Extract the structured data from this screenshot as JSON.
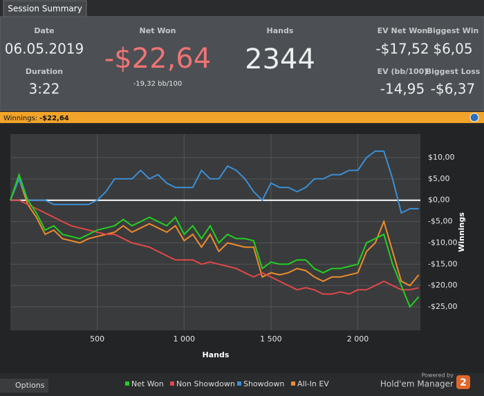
{
  "tab": "Session Summary",
  "stats": {
    "date_label": "Date",
    "date": "06.05.2019",
    "duration_label": "Duration",
    "duration": "3:22",
    "net_won_label": "Net Won",
    "net_won": "-$22,64",
    "net_won_bb": "-19,32 bb/100",
    "hands_label": "Hands",
    "hands": "2344",
    "ev_net_won_label": "EV Net Won",
    "ev_net_won": "-$17,52",
    "biggest_win_label": "Biggest Win",
    "biggest_win": "$6,05",
    "ev_bb_label": "EV (bb/100)",
    "ev_bb": "-14,95",
    "biggest_loss_label": "Biggest Loss",
    "biggest_loss": "-$6,37"
  },
  "winnings_bar": {
    "label": "Winnings:",
    "value": "-$22,64"
  },
  "chart_data": {
    "type": "line",
    "x_label": "Hands",
    "y_label": "Winnings",
    "x": [
      0,
      50,
      100,
      150,
      200,
      250,
      300,
      350,
      400,
      450,
      500,
      550,
      600,
      650,
      700,
      750,
      800,
      850,
      900,
      950,
      1000,
      1050,
      1100,
      1150,
      1200,
      1250,
      1300,
      1350,
      1400,
      1450,
      1500,
      1550,
      1600,
      1650,
      1700,
      1750,
      1800,
      1850,
      1900,
      1950,
      2000,
      2050,
      2100,
      2150,
      2200,
      2250,
      2300,
      2350
    ],
    "xlim": [
      0,
      2360
    ],
    "ylim": [
      -30.5,
      15.5
    ],
    "xticks": [
      500,
      {
        "value": 1000,
        "label": "1 000"
      },
      {
        "value": 1500,
        "label": "1 500"
      },
      {
        "value": 2000,
        "label": "2 000"
      }
    ],
    "yticks": [
      {
        "value": 10,
        "label": "$10,00"
      },
      {
        "value": 5,
        "label": "$5,00"
      },
      {
        "value": 0,
        "label": "$0,00"
      },
      {
        "value": -5,
        "label": "-$5,00"
      },
      {
        "value": -10,
        "label": "-$10,00"
      },
      {
        "value": -15,
        "label": "-$15,00"
      },
      {
        "value": -20,
        "label": "-$20,00"
      },
      {
        "value": -25,
        "label": "-$25,00"
      }
    ],
    "grid": true,
    "zero_line": true,
    "series": [
      {
        "name": "Net Won",
        "color": "#22d022",
        "values": [
          0,
          6,
          0,
          -3,
          -7,
          -6,
          -8,
          -8.5,
          -9,
          -8,
          -7,
          -6.5,
          -6,
          -4.5,
          -6,
          -5,
          -4,
          -5,
          -6,
          -4,
          -8,
          -6,
          -9,
          -6,
          -10,
          -8,
          -9,
          -9,
          -9.5,
          -16,
          -14.5,
          -15,
          -15,
          -14,
          -14,
          -16,
          -17,
          -16,
          -16,
          -15.5,
          -15,
          -10,
          -9,
          -8,
          -15,
          -20,
          -25,
          -22.64
        ]
      },
      {
        "name": "Non Showdown",
        "color": "#e0484a",
        "values": [
          0,
          0,
          -1,
          -2,
          -3,
          -4,
          -5,
          -6,
          -6.5,
          -7,
          -7.5,
          -8,
          -8,
          -9,
          -10,
          -10.5,
          -11,
          -12,
          -13,
          -14,
          -14,
          -14,
          -15,
          -14.5,
          -15,
          -15.5,
          -16,
          -17,
          -18,
          -17,
          -18,
          -19,
          -20,
          -21,
          -20.5,
          -21,
          -22,
          -22,
          -21.5,
          -22,
          -21,
          -21,
          -20,
          -19,
          -20,
          -21,
          -21,
          -20.5
        ]
      },
      {
        "name": "Showdown",
        "color": "#3b8fd6",
        "values": [
          0,
          5,
          0,
          0,
          0,
          -1,
          -1,
          -1,
          -1,
          -1,
          0,
          2,
          5,
          5,
          5,
          7,
          5,
          6,
          4,
          3,
          3,
          3,
          7,
          5,
          5,
          8,
          7,
          5,
          2,
          0,
          4,
          3,
          3,
          2,
          3,
          5,
          5,
          6,
          6,
          7,
          7,
          10,
          11.5,
          11.5,
          5,
          -3,
          -2,
          -2
        ]
      },
      {
        "name": "All-In EV",
        "color": "#f08c2a",
        "values": [
          0,
          5,
          -1,
          -4,
          -8,
          -7,
          -9,
          -9.5,
          -10,
          -9,
          -8.5,
          -8,
          -7.5,
          -6,
          -7.5,
          -6.5,
          -5.5,
          -6.5,
          -7.5,
          -6,
          -9.5,
          -8,
          -11,
          -8,
          -12,
          -10,
          -10.5,
          -11,
          -11,
          -18,
          -17,
          -17.5,
          -17,
          -16,
          -16.5,
          -18,
          -19,
          -18,
          -18,
          -17.5,
          -17,
          -12,
          -10,
          -5,
          -12,
          -19,
          -20,
          -17.5
        ]
      }
    ]
  },
  "footer": {
    "options": "Options",
    "powered_by": "Powered by",
    "brand": "Hold'em Manager",
    "badge": "2"
  }
}
